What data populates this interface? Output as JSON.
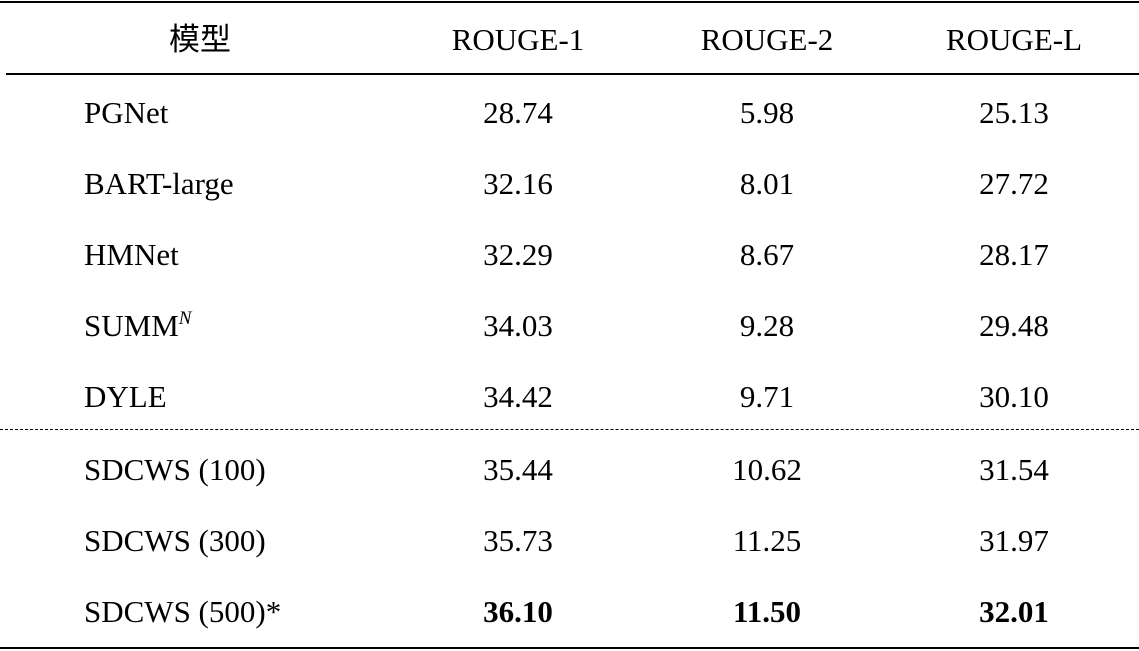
{
  "table": {
    "header": [
      "模型",
      "ROUGE-1",
      "ROUGE-2",
      "ROUGE-L"
    ],
    "groups": [
      [
        {
          "model": "PGNet",
          "scores": [
            "28.74",
            "5.98",
            "25.13"
          ]
        },
        {
          "model": "BART-large",
          "scores": [
            "32.16",
            "8.01",
            "27.72"
          ]
        },
        {
          "model": "HMNet",
          "scores": [
            "32.29",
            "8.67",
            "28.17"
          ]
        },
        {
          "model": "SUMM",
          "model_superscript": "N",
          "scores": [
            "34.03",
            "9.28",
            "29.48"
          ]
        },
        {
          "model": "DYLE",
          "scores": [
            "34.42",
            "9.71",
            "30.10"
          ]
        }
      ],
      [
        {
          "model": "SDCWS (100)",
          "scores": [
            "35.44",
            "10.62",
            "31.54"
          ]
        },
        {
          "model": "SDCWS (300)",
          "scores": [
            "35.73",
            "11.25",
            "31.97"
          ]
        },
        {
          "model": "SDCWS (500)*",
          "scores": [
            "36.10",
            "11.50",
            "32.01"
          ],
          "bold": true
        }
      ]
    ]
  }
}
